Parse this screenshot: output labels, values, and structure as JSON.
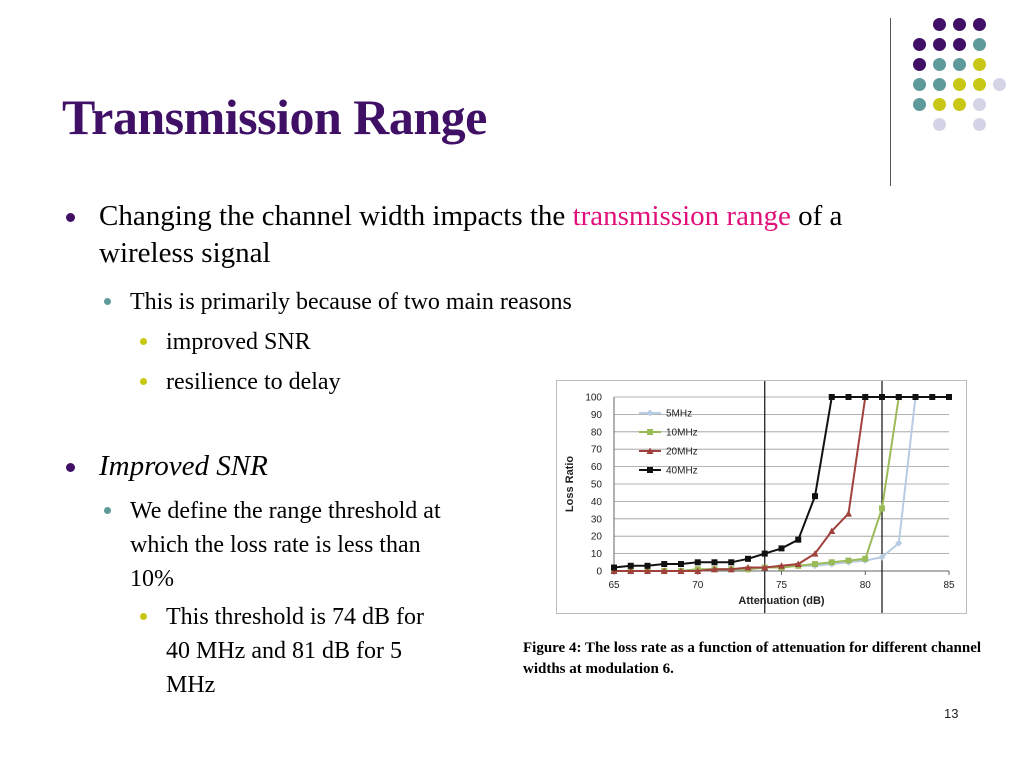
{
  "slide": {
    "title": "Transmission Range",
    "page_number": "13",
    "colors": {
      "title": "#3f1066",
      "highlight": "#e0107a",
      "dot_purple": "#3f1066",
      "dot_teal": "#5f9a9a",
      "dot_yellow": "#c8c814",
      "dot_lavender": "#d4d4e6"
    }
  },
  "bullets": {
    "b1": {
      "text_a": "Changing the channel width impacts the ",
      "highlight": "transmission range",
      "text_b": " of a wireless signal"
    },
    "b1_1": "This is primarily because of two main reasons",
    "b1_1_1": "improved SNR",
    "b1_1_2": "resilience to delay",
    "b2": "Improved SNR",
    "b2_1": "We define the range threshold at which the loss rate is less than 10%",
    "b2_1_1": "This threshold is 74 dB for 40 MHz and 81 dB for 5 MHz"
  },
  "figure": {
    "caption": "Figure 4: The loss rate as a function of attenuation for different channel widths at modulation 6."
  },
  "chart_data": {
    "type": "line",
    "xlabel": "Attenuation (dB)",
    "ylabel": "Loss Ratio",
    "xlim": [
      65,
      85
    ],
    "ylim": [
      0,
      100
    ],
    "xticks": [
      65,
      70,
      75,
      80,
      85
    ],
    "yticks": [
      0,
      10,
      20,
      30,
      40,
      50,
      60,
      70,
      80,
      90,
      100
    ],
    "grid": true,
    "legend_position": "top-left",
    "reference_lines_x": [
      74,
      81
    ],
    "series": [
      {
        "name": "5MHz",
        "color": "#b8cce4",
        "marker": "diamond",
        "x": [
          65,
          66,
          67,
          68,
          69,
          70,
          71,
          72,
          73,
          74,
          75,
          76,
          77,
          78,
          79,
          80,
          81,
          82,
          83
        ],
        "y": [
          0,
          0,
          0,
          0,
          0,
          1,
          1,
          1,
          1,
          2,
          2,
          3,
          3,
          4,
          5,
          6,
          8,
          16,
          100
        ]
      },
      {
        "name": "10MHz",
        "color": "#9bbb59",
        "marker": "square",
        "x": [
          65,
          66,
          67,
          68,
          69,
          70,
          71,
          72,
          73,
          74,
          75,
          76,
          77,
          78,
          79,
          80,
          81,
          82
        ],
        "y": [
          0,
          0,
          0,
          0,
          0,
          1,
          1,
          1,
          1,
          2,
          2,
          3,
          4,
          5,
          6,
          7,
          36,
          100
        ]
      },
      {
        "name": "20MHz",
        "color": "#a0413c",
        "marker": "triangle",
        "x": [
          65,
          66,
          67,
          68,
          69,
          70,
          71,
          72,
          73,
          74,
          75,
          76,
          77,
          78,
          79,
          80
        ],
        "y": [
          0,
          0,
          0,
          0,
          0,
          0,
          1,
          1,
          2,
          2,
          3,
          4,
          10,
          23,
          33,
          100
        ]
      },
      {
        "name": "40MHz",
        "color": "#111111",
        "marker": "square",
        "x": [
          65,
          66,
          67,
          68,
          69,
          70,
          71,
          72,
          73,
          74,
          75,
          76,
          77,
          78,
          79,
          80,
          81,
          82,
          83,
          84,
          85
        ],
        "y": [
          2,
          3,
          3,
          4,
          4,
          5,
          5,
          5,
          7,
          10,
          13,
          18,
          43,
          100,
          100,
          100,
          100,
          100,
          100,
          100,
          100
        ]
      }
    ]
  }
}
